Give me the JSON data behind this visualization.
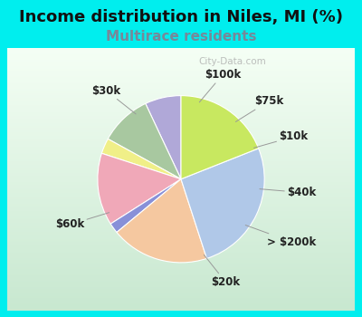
{
  "title": "Income distribution in Niles, MI (%)",
  "subtitle": "Multirace residents",
  "title_fontsize": 13,
  "subtitle_fontsize": 11,
  "background_color": "#00EEEE",
  "chart_bg_gradient_top": "#f0f8f0",
  "chart_bg_gradient_bottom": "#d8eedd",
  "watermark": "City-Data.com",
  "slices": [
    {
      "label": "$100k",
      "value": 7,
      "color": "#b0a8d8"
    },
    {
      "label": "$75k",
      "value": 10,
      "color": "#a8c8a0"
    },
    {
      "label": "$10k",
      "value": 3,
      "color": "#f0ef88"
    },
    {
      "label": "$40k",
      "value": 14,
      "color": "#f0a8b8"
    },
    {
      "label": "> $200k",
      "value": 2,
      "color": "#8890d8"
    },
    {
      "label": "$20k",
      "value": 19,
      "color": "#f5c8a0"
    },
    {
      "label": "$60k",
      "value": 26,
      "color": "#b0c8e8"
    },
    {
      "label": "$30k",
      "value": 19,
      "color": "#c8e860"
    }
  ],
  "label_fontsize": 8.5,
  "label_color": "#222222",
  "subtitle_color": "#778899",
  "title_color": "#111111"
}
